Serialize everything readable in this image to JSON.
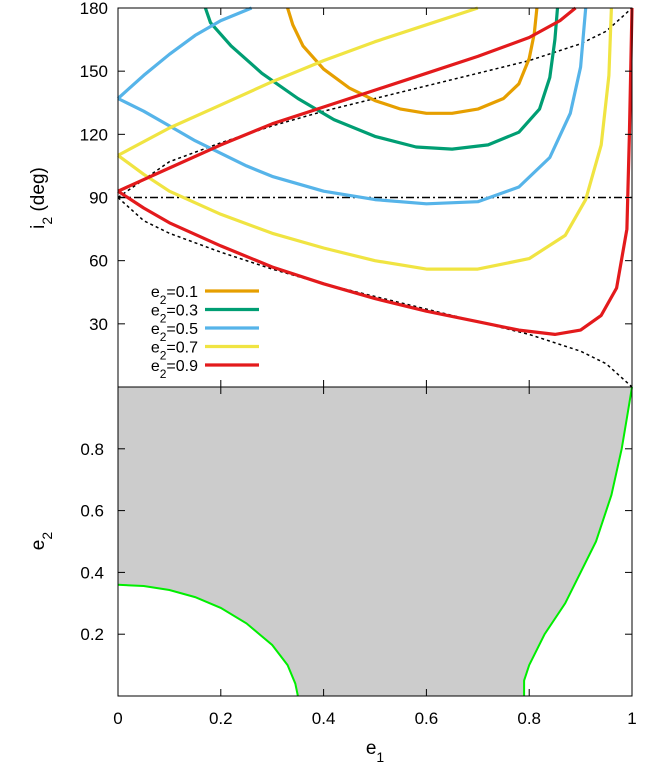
{
  "chart_data": [
    {
      "type": "line",
      "xlabel": "",
      "ylabel": "i2 (deg)",
      "ylabel_parts": {
        "base": "i",
        "sub": "2",
        "rest": " (deg)"
      },
      "xlim": [
        0,
        1
      ],
      "ylim": [
        0,
        180
      ],
      "yticks": [
        30,
        60,
        90,
        120,
        150,
        180
      ],
      "ytick_labels": [
        "30",
        "60",
        "90",
        "120",
        "150",
        "180"
      ],
      "grid": false,
      "legend_position": "bottom-left",
      "series": [
        {
          "name": "e2=0.1",
          "legend_base": "e",
          "legend_sub": "2",
          "legend_value": "=0.1",
          "color": "#E69F00",
          "x": [
            0.33,
            0.34,
            0.36,
            0.4,
            0.45,
            0.5,
            0.55,
            0.6,
            0.65,
            0.7,
            0.75,
            0.78,
            0.8,
            0.81,
            0.815
          ],
          "y": [
            180,
            172,
            162,
            151,
            142,
            136,
            132,
            130,
            130,
            132,
            137,
            144,
            156,
            168,
            180
          ]
        },
        {
          "name": "e2=0.3",
          "legend_base": "e",
          "legend_sub": "2",
          "legend_value": "=0.3",
          "color": "#009E73",
          "x": [
            0.17,
            0.18,
            0.22,
            0.28,
            0.35,
            0.42,
            0.5,
            0.58,
            0.65,
            0.72,
            0.78,
            0.82,
            0.84,
            0.85,
            0.855
          ],
          "y": [
            180,
            173,
            162,
            149,
            137,
            127,
            119,
            114,
            113,
            115,
            121,
            132,
            147,
            165,
            180
          ]
        },
        {
          "name": "e2=0.5",
          "legend_base": "e",
          "legend_sub": "2",
          "legend_value": "=0.5",
          "color": "#56B4E9",
          "x": [
            0.0,
            0.05,
            0.1,
            0.15,
            0.2,
            0.25,
            0.3,
            0.4,
            0.5,
            0.6,
            0.7,
            0.78,
            0.84,
            0.88,
            0.9,
            0.91
          ],
          "y": [
            137,
            131,
            124,
            117,
            111,
            105,
            100,
            93,
            89,
            87,
            88,
            95,
            109,
            130,
            152,
            180
          ],
          "branch2": {
            "x": [
              0.0,
              0.05,
              0.1,
              0.15,
              0.2,
              0.26
            ],
            "y": [
              137,
              148,
              158,
              167,
              174,
              180
            ]
          }
        },
        {
          "name": "e2=0.7",
          "legend_base": "e",
          "legend_sub": "2",
          "legend_value": "=0.7",
          "color": "#F0E442",
          "x": [
            0.0,
            0.05,
            0.1,
            0.2,
            0.3,
            0.4,
            0.5,
            0.6,
            0.7,
            0.8,
            0.87,
            0.91,
            0.94,
            0.955,
            0.96
          ],
          "y": [
            110,
            101,
            93,
            82,
            73,
            66,
            60,
            56,
            56,
            61,
            72,
            89,
            115,
            148,
            180
          ],
          "branch2": {
            "x": [
              0.0,
              0.1,
              0.2,
              0.3,
              0.4,
              0.5,
              0.6,
              0.7
            ],
            "y": [
              110,
              123,
              134,
              145,
              155,
              164,
              172,
              180
            ]
          }
        },
        {
          "name": "e2=0.9",
          "legend_base": "e",
          "legend_sub": "2",
          "legend_value": "=0.9",
          "color": "#E31A1C",
          "x": [
            0.0,
            0.05,
            0.1,
            0.2,
            0.3,
            0.4,
            0.5,
            0.6,
            0.7,
            0.78,
            0.85,
            0.9,
            0.94,
            0.97,
            0.99,
            0.995,
            1.0
          ],
          "y": [
            93,
            85,
            78,
            67,
            57,
            49,
            42,
            36,
            31,
            27,
            25,
            27,
            34,
            47,
            75,
            120,
            180
          ],
          "branch2": {
            "x": [
              0.0,
              0.1,
              0.2,
              0.3,
              0.4,
              0.5,
              0.6,
              0.7,
              0.8,
              0.86,
              0.89
            ],
            "y": [
              93,
              104,
              115,
              125,
              133,
              141,
              149,
              157,
              166,
              174,
              180
            ]
          }
        }
      ],
      "reference_curves": [
        {
          "style": "dashed-black",
          "x": [
            0.0,
            0.05,
            0.1,
            0.2,
            0.3,
            0.4,
            0.5,
            0.6,
            0.7,
            0.8,
            0.9,
            0.95,
            1.0
          ],
          "y": [
            90,
            79,
            73,
            64,
            56,
            49,
            43,
            37,
            31,
            25,
            17,
            11,
            0
          ]
        },
        {
          "style": "dashed-black",
          "x": [
            0.0,
            0.1,
            0.2,
            0.3,
            0.4,
            0.5,
            0.6,
            0.7,
            0.8,
            0.9,
            0.95,
            1.0
          ],
          "y": [
            90,
            107,
            116,
            124,
            131,
            137,
            143,
            149,
            155,
            163,
            169,
            180
          ]
        },
        {
          "style": "dash-dot-black",
          "x": [
            0.0,
            1.0
          ],
          "y": [
            90,
            90
          ]
        }
      ]
    },
    {
      "type": "area",
      "xlabel": "e1",
      "xlabel_parts": {
        "base": "e",
        "sub": "1"
      },
      "ylabel": "e2",
      "ylabel_parts": {
        "base": "e",
        "sub": "2"
      },
      "xlim": [
        0,
        1
      ],
      "ylim": [
        0,
        1
      ],
      "xticks": [
        0,
        0.2,
        0.4,
        0.6,
        0.8,
        1
      ],
      "xtick_labels": [
        "0",
        "0.2",
        "0.4",
        "0.6",
        "0.8",
        "1"
      ],
      "yticks": [
        0.2,
        0.4,
        0.6,
        0.8
      ],
      "ytick_labels": [
        "0.2",
        "0.4",
        "0.6",
        "0.8"
      ],
      "fill_color": "#cccccc",
      "boundary_color": "#00ee00",
      "left_boundary": {
        "x": [
          0.0,
          0.05,
          0.1,
          0.15,
          0.2,
          0.25,
          0.3,
          0.33,
          0.345,
          0.35
        ],
        "y": [
          0.36,
          0.356,
          0.343,
          0.32,
          0.285,
          0.235,
          0.165,
          0.1,
          0.04,
          0.0
        ]
      },
      "right_boundary": {
        "x": [
          0.79,
          0.79,
          0.8,
          0.83,
          0.87,
          0.9,
          0.93,
          0.96,
          0.98,
          0.99,
          1.0
        ],
        "y": [
          0.0,
          0.05,
          0.1,
          0.2,
          0.3,
          0.4,
          0.5,
          0.65,
          0.8,
          0.9,
          1.0
        ]
      }
    }
  ]
}
